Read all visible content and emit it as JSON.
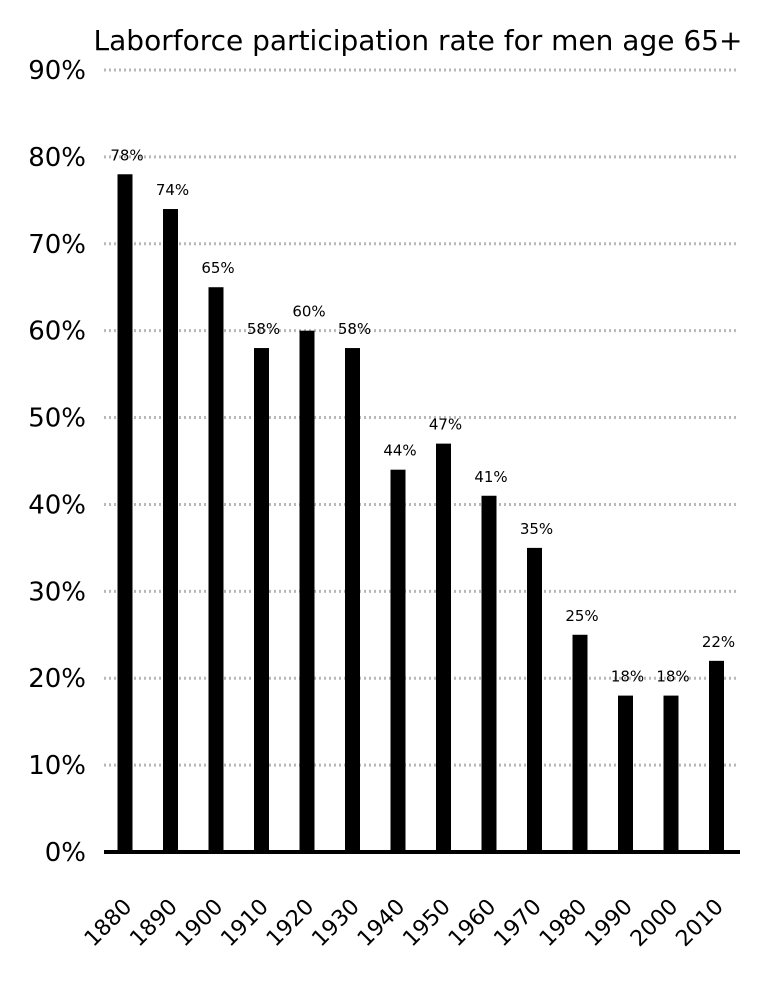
{
  "chart_data": {
    "type": "bar",
    "title": "Laborforce participation rate for men age 65+",
    "xlabel": "",
    "ylabel": "",
    "categories": [
      "1880",
      "1890",
      "1900",
      "1910",
      "1920",
      "1930",
      "1940",
      "1950",
      "1960",
      "1970",
      "1980",
      "1990",
      "2000",
      "2010"
    ],
    "values": [
      78,
      74,
      65,
      58,
      60,
      58,
      44,
      47,
      41,
      35,
      25,
      18,
      18,
      22
    ],
    "data_labels": [
      "78%",
      "74%",
      "65%",
      "58%",
      "60%",
      "58%",
      "44%",
      "47%",
      "41%",
      "35%",
      "25%",
      "18%",
      "18%",
      "22%"
    ],
    "ylim": [
      0,
      90
    ],
    "yticks": [
      0,
      10,
      20,
      30,
      40,
      50,
      60,
      70,
      80,
      90
    ],
    "ytick_labels": [
      "0%",
      "10%",
      "20%",
      "30%",
      "40%",
      "50%",
      "60%",
      "70%",
      "80%",
      "90%"
    ],
    "grid": true,
    "bar_color": "#000000",
    "grid_color": "#b8b8b8"
  }
}
